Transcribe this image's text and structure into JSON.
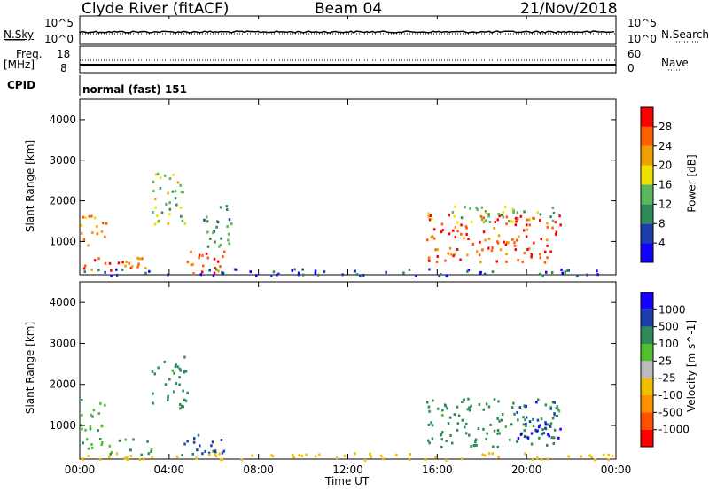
{
  "header": {
    "station": "Clyde River (fitACF)",
    "beam": "Beam 04",
    "date": "21/Nov/2018"
  },
  "top_panels": {
    "nsky_label": "N.Sky",
    "nsky_ticks": [
      "10^5",
      "10^0"
    ],
    "nsearch_label": "N.Search",
    "nsearch_ticks": [
      "10^5",
      "10^0"
    ],
    "freq_label_1": "Freq.",
    "freq_label_2": "[MHz]",
    "freq_ticks": [
      "18",
      "8"
    ],
    "nave_label": "Nave",
    "nave_ticks": [
      "60",
      "0"
    ],
    "cpid_label": "CPID",
    "cpid_value": "normal (fast) 151"
  },
  "time_axis": {
    "label": "Time UT",
    "ticks": [
      "00:00",
      "04:00",
      "08:00",
      "12:00",
      "16:00",
      "20:00",
      "00:00"
    ]
  },
  "colors": {
    "power_scale": [
      "#1400ff",
      "#1a3fa8",
      "#2e8b57",
      "#5cb85c",
      "#f0e000",
      "#f0a000",
      "#ff6000",
      "#ff0000"
    ],
    "velocity_scale": [
      "#ff0000",
      "#ff5000",
      "#ff9000",
      "#f0c000",
      "#bbbbbb",
      "#50c030",
      "#2e8b57",
      "#1a3fa8",
      "#1400ff"
    ]
  },
  "chart_data": [
    {
      "type": "heatmap",
      "name": "power",
      "ylabel": "Slant Range [km]",
      "yticks": [
        "4000",
        "3000",
        "2000",
        "1000"
      ],
      "ylim": [
        180,
        4500
      ],
      "xlim_hours": [
        0,
        24
      ],
      "colorbar_label": "Power [dB]",
      "colorbar_ticks": [
        "28",
        "24",
        "20",
        "16",
        "12",
        "8",
        "4"
      ],
      "colorbar_range": [
        0,
        32
      ],
      "regions": [
        {
          "t0": 0.0,
          "t1": 1.2,
          "r0": 900,
          "r1": 1700,
          "val": 22
        },
        {
          "t0": 0.0,
          "t1": 3.2,
          "r0": 300,
          "r1": 700,
          "val": 26
        },
        {
          "t0": 3.2,
          "t1": 4.8,
          "r0": 1400,
          "r1": 2700,
          "val": 16
        },
        {
          "t0": 4.5,
          "t1": 6.5,
          "r0": 200,
          "r1": 800,
          "val": 28
        },
        {
          "t0": 5.5,
          "t1": 6.8,
          "r0": 900,
          "r1": 2000,
          "val": 10
        },
        {
          "t0": 15.5,
          "t1": 21.5,
          "r0": 500,
          "r1": 1700,
          "val": 27
        },
        {
          "t0": 15.5,
          "t1": 21.5,
          "r0": 1500,
          "r1": 1900,
          "val": 14
        },
        {
          "t0": 0.0,
          "t1": 24.0,
          "r0": 180,
          "r1": 350,
          "val": 6
        }
      ]
    },
    {
      "type": "heatmap",
      "name": "velocity",
      "ylabel": "Slant Range [km]",
      "yticks": [
        "4000",
        "3000",
        "2000",
        "1000"
      ],
      "ylim": [
        180,
        4500
      ],
      "xlim_hours": [
        0,
        24
      ],
      "colorbar_label": "Velocity [m s^-1]",
      "colorbar_ticks": [
        "1000",
        "500",
        "100",
        "25",
        "-25",
        "-100",
        "-500",
        "-1000"
      ],
      "regions": [
        {
          "t0": 0.0,
          "t1": 1.2,
          "r0": 900,
          "r1": 1700,
          "val": 100
        },
        {
          "t0": 0.0,
          "t1": 3.2,
          "r0": 300,
          "r1": 700,
          "val": 100
        },
        {
          "t0": 3.2,
          "t1": 4.8,
          "r0": 1400,
          "r1": 2700,
          "val": 200
        },
        {
          "t0": 4.5,
          "t1": 6.5,
          "r0": 200,
          "r1": 800,
          "val": 600
        },
        {
          "t0": 15.5,
          "t1": 21.5,
          "r0": 500,
          "r1": 1700,
          "val": 200
        },
        {
          "t0": 19.5,
          "t1": 21.5,
          "r0": 700,
          "r1": 1600,
          "val": 900
        },
        {
          "t0": 0.0,
          "t1": 24.0,
          "r0": 180,
          "r1": 350,
          "val": -80
        }
      ]
    }
  ]
}
